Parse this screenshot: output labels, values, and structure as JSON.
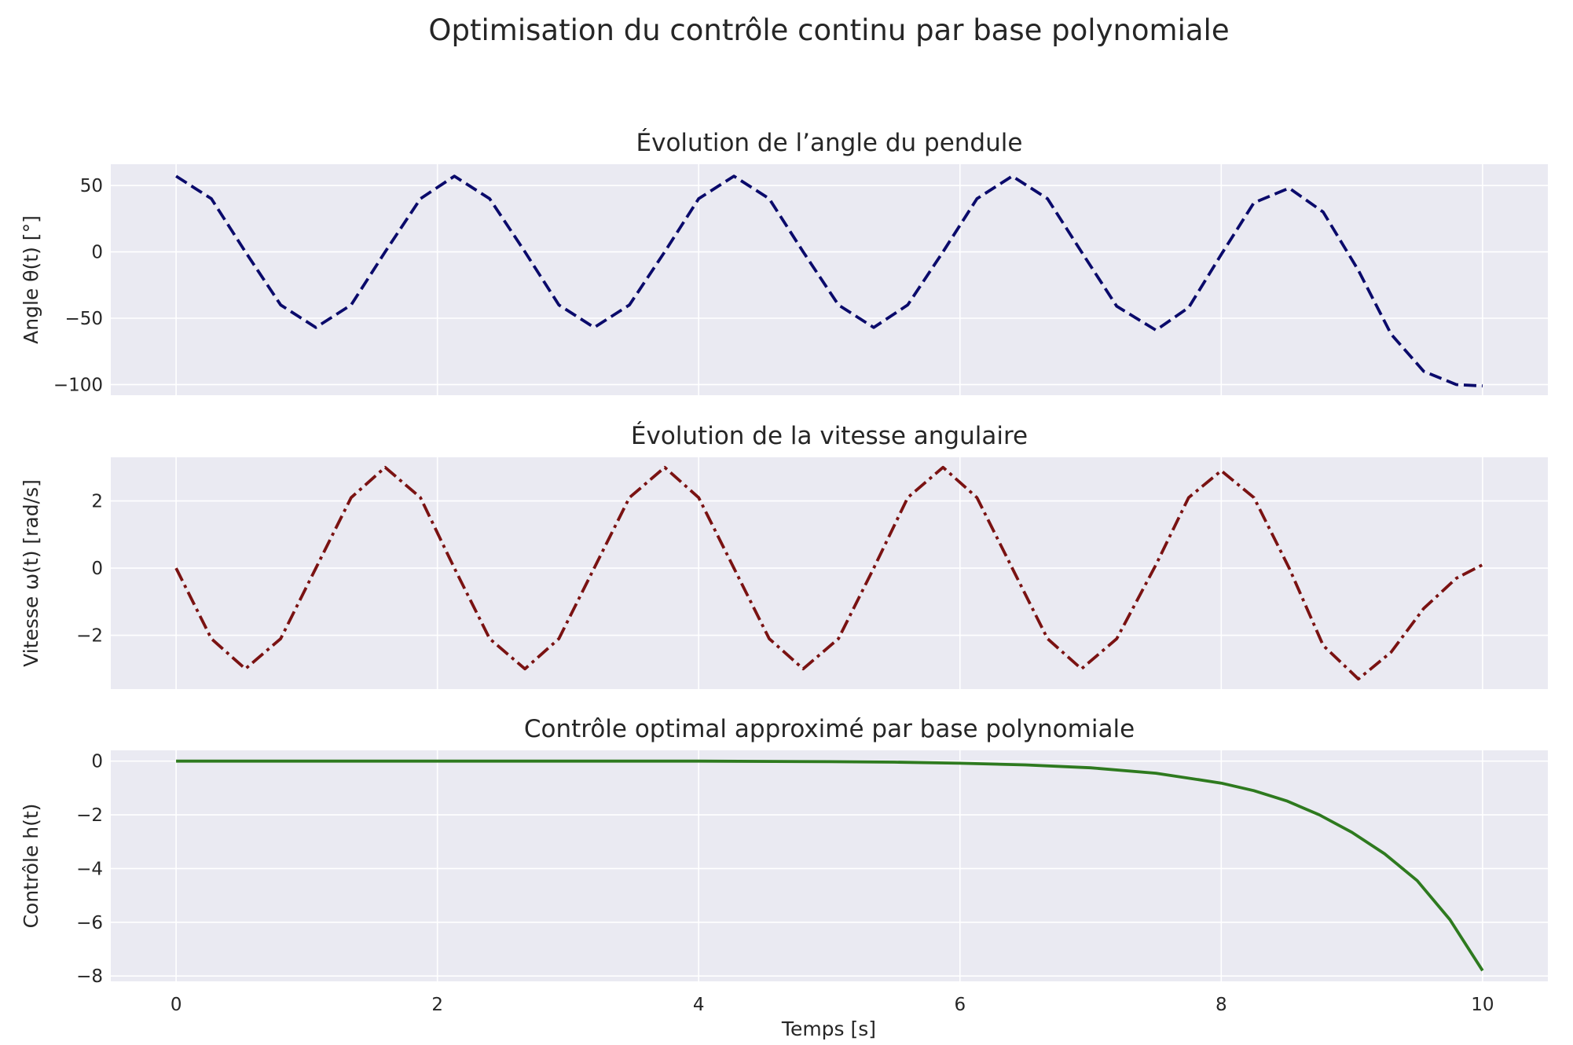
{
  "chart_data": {
    "suptitle": "Optimisation du contrôle continu par base polynomiale",
    "xlabel": "Temps [s]",
    "xlim": [
      -0.5,
      10.5
    ],
    "x_ticks": [
      0,
      2,
      4,
      6,
      8,
      10
    ],
    "x_tick_labels": [
      "0",
      "2",
      "4",
      "6",
      "8",
      "10"
    ],
    "style": {
      "background": "#eaeaf2",
      "grid": true,
      "grid_color": "#ffffff"
    },
    "panels": [
      {
        "type": "line",
        "title": "Évolution de l’angle du pendule",
        "ylabel": "Angle θ(t) [°]",
        "ylim": [
          -108,
          66
        ],
        "y_ticks": [
          50,
          0,
          -50,
          -100
        ],
        "y_tick_labels": [
          "50",
          "0",
          "−50",
          "−100"
        ],
        "series": [
          {
            "color": "#0a0a6b",
            "linestyle": "dashed",
            "x": [
              0,
              0.27,
              0.53,
              0.8,
              1.07,
              1.34,
              1.6,
              1.87,
              2.13,
              2.4,
              2.67,
              2.93,
              3.2,
              3.47,
              3.74,
              4.0,
              4.27,
              4.54,
              4.8,
              5.07,
              5.34,
              5.6,
              5.87,
              6.13,
              6.4,
              6.67,
              6.93,
              7.2,
              7.5,
              7.75,
              8.0,
              8.25,
              8.52,
              8.78,
              9.05,
              9.3,
              9.55,
              9.8,
              10.0
            ],
            "y": [
              57,
              40,
              0,
              -40,
              -57,
              -40,
              0,
              40,
              57,
              40,
              0,
              -40,
              -57,
              -40,
              0,
              40,
              57,
              40,
              0,
              -40,
              -57,
              -40,
              0,
              40,
              57,
              40,
              0,
              -41,
              -59,
              -42,
              -2,
              37,
              48,
              30,
              -14,
              -62,
              -90,
              -100,
              -101
            ]
          }
        ]
      },
      {
        "type": "line",
        "title": "Évolution de la vitesse angulaire",
        "ylabel": "Vitesse ω(t) [rad/s]",
        "ylim": [
          -3.6,
          3.3
        ],
        "y_ticks": [
          2,
          0,
          -2
        ],
        "y_tick_labels": [
          "2",
          "0",
          "−2"
        ],
        "series": [
          {
            "color": "#7a1212",
            "linestyle": "dashdot",
            "x": [
              0,
              0.27,
              0.53,
              0.8,
              1.07,
              1.34,
              1.6,
              1.87,
              2.13,
              2.4,
              2.67,
              2.93,
              3.2,
              3.47,
              3.74,
              4.0,
              4.27,
              4.54,
              4.8,
              5.07,
              5.34,
              5.6,
              5.87,
              6.13,
              6.4,
              6.67,
              6.93,
              7.2,
              7.5,
              7.75,
              8.0,
              8.25,
              8.52,
              8.78,
              9.05,
              9.3,
              9.55,
              9.8,
              10.0
            ],
            "y": [
              0,
              -2.1,
              -3.0,
              -2.1,
              0,
              2.1,
              3.0,
              2.1,
              0,
              -2.1,
              -3.0,
              -2.1,
              0,
              2.1,
              3.0,
              2.1,
              0,
              -2.1,
              -3.0,
              -2.1,
              0,
              2.1,
              3.0,
              2.1,
              0,
              -2.1,
              -3.0,
              -2.1,
              0.1,
              2.1,
              2.9,
              2.1,
              0,
              -2.3,
              -3.3,
              -2.5,
              -1.2,
              -0.3,
              0.1
            ]
          }
        ]
      },
      {
        "type": "line",
        "title": "Contrôle optimal approximé par base polynomiale",
        "ylabel": "Contrôle h(t)",
        "ylim": [
          -8.2,
          0.4
        ],
        "y_ticks": [
          0,
          -2,
          -4,
          -6,
          -8
        ],
        "y_tick_labels": [
          "0",
          "−2",
          "−4",
          "−6",
          "−8"
        ],
        "series": [
          {
            "color": "#2e7a1f",
            "linestyle": "solid",
            "x": [
              0,
              1,
              2,
              3,
              4,
              5,
              5.5,
              6,
              6.5,
              7,
              7.5,
              8,
              8.25,
              8.5,
              8.75,
              9,
              9.25,
              9.5,
              9.75,
              10.0
            ],
            "y": [
              0,
              0,
              0,
              0,
              0,
              -0.02,
              -0.04,
              -0.08,
              -0.14,
              -0.25,
              -0.45,
              -0.82,
              -1.1,
              -1.48,
              -2.0,
              -2.65,
              -3.45,
              -4.45,
              -5.9,
              -7.8
            ]
          }
        ]
      }
    ]
  }
}
